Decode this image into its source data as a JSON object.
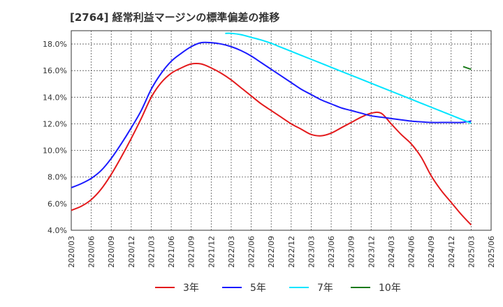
{
  "title": "[2764]  経常利益マージンの標準偏差の推移",
  "chart_data": {
    "type": "line",
    "title": "[2764]  経常利益マージンの標準偏差の推移",
    "xlabel": "",
    "ylabel": "",
    "ylim": [
      4.0,
      19.0
    ],
    "y_ticks": [
      "4.0%",
      "6.0%",
      "8.0%",
      "10.0%",
      "12.0%",
      "14.0%",
      "16.0%",
      "18.0%"
    ],
    "y_tick_values": [
      4,
      6,
      8,
      10,
      12,
      14,
      16,
      18
    ],
    "x_ticks": [
      "2020/03",
      "2020/06",
      "2020/09",
      "2020/12",
      "2021/03",
      "2021/06",
      "2021/09",
      "2021/12",
      "2022/03",
      "2022/06",
      "2022/09",
      "2022/12",
      "2023/03",
      "2023/06",
      "2023/09",
      "2023/12",
      "2024/03",
      "2024/06",
      "2024/09",
      "2024/12",
      "2025/03",
      "2025/06"
    ],
    "grid": true,
    "legend_position": "bottom",
    "series": [
      {
        "name": "3年",
        "color": "#e31a1c",
        "points": [
          [
            0,
            5.5
          ],
          [
            0.5,
            5.8
          ],
          [
            1,
            6.3
          ],
          [
            1.5,
            7.1
          ],
          [
            2,
            8.2
          ],
          [
            2.5,
            9.5
          ],
          [
            3,
            10.9
          ],
          [
            3.5,
            12.4
          ],
          [
            4,
            14.0
          ],
          [
            4.5,
            15.1
          ],
          [
            5,
            15.8
          ],
          [
            5.5,
            16.2
          ],
          [
            6,
            16.5
          ],
          [
            6.5,
            16.5
          ],
          [
            7,
            16.2
          ],
          [
            7.5,
            15.8
          ],
          [
            8,
            15.3
          ],
          [
            8.5,
            14.7
          ],
          [
            9,
            14.1
          ],
          [
            9.5,
            13.5
          ],
          [
            10,
            13.0
          ],
          [
            10.5,
            12.5
          ],
          [
            11,
            12.0
          ],
          [
            11.5,
            11.6
          ],
          [
            12,
            11.2
          ],
          [
            12.5,
            11.1
          ],
          [
            13,
            11.3
          ],
          [
            13.5,
            11.7
          ],
          [
            14,
            12.1
          ],
          [
            14.5,
            12.5
          ],
          [
            15,
            12.8
          ],
          [
            15.5,
            12.8
          ],
          [
            16,
            12.0
          ],
          [
            16.5,
            11.2
          ],
          [
            17,
            10.5
          ],
          [
            17.5,
            9.5
          ],
          [
            18,
            8.1
          ],
          [
            18.5,
            7.0
          ],
          [
            19,
            6.1
          ],
          [
            19.5,
            5.2
          ],
          [
            20,
            4.4
          ]
        ]
      },
      {
        "name": "5年",
        "color": "#1a1aff",
        "points": [
          [
            0,
            7.2
          ],
          [
            0.5,
            7.5
          ],
          [
            1,
            7.9
          ],
          [
            1.5,
            8.5
          ],
          [
            2,
            9.4
          ],
          [
            2.5,
            10.5
          ],
          [
            3,
            11.7
          ],
          [
            3.5,
            13.0
          ],
          [
            4,
            14.6
          ],
          [
            4.5,
            15.8
          ],
          [
            5,
            16.7
          ],
          [
            5.5,
            17.3
          ],
          [
            6,
            17.8
          ],
          [
            6.5,
            18.1
          ],
          [
            7,
            18.1
          ],
          [
            7.5,
            18.0
          ],
          [
            8,
            17.8
          ],
          [
            8.5,
            17.5
          ],
          [
            9,
            17.1
          ],
          [
            9.5,
            16.6
          ],
          [
            10,
            16.1
          ],
          [
            10.5,
            15.6
          ],
          [
            11,
            15.1
          ],
          [
            11.5,
            14.6
          ],
          [
            12,
            14.2
          ],
          [
            12.5,
            13.8
          ],
          [
            13,
            13.5
          ],
          [
            13.5,
            13.2
          ],
          [
            14,
            13.0
          ],
          [
            14.5,
            12.8
          ],
          [
            15,
            12.6
          ],
          [
            15.5,
            12.5
          ],
          [
            16,
            12.4
          ],
          [
            16.5,
            12.3
          ],
          [
            17,
            12.2
          ],
          [
            17.5,
            12.15
          ],
          [
            18,
            12.1
          ],
          [
            18.5,
            12.1
          ],
          [
            19,
            12.1
          ],
          [
            19.5,
            12.1
          ],
          [
            20,
            12.2
          ]
        ]
      },
      {
        "name": "7年",
        "color": "#00e5ff",
        "points": [
          [
            7.7,
            18.8
          ],
          [
            8,
            18.8
          ],
          [
            8.5,
            18.7
          ],
          [
            9,
            18.5
          ],
          [
            9.5,
            18.3
          ],
          [
            10,
            18.05
          ],
          [
            10.5,
            17.75
          ],
          [
            11,
            17.45
          ],
          [
            11.5,
            17.15
          ],
          [
            12,
            16.85
          ],
          [
            12.5,
            16.55
          ],
          [
            13,
            16.25
          ],
          [
            13.5,
            15.95
          ],
          [
            14,
            15.65
          ],
          [
            14.5,
            15.35
          ],
          [
            15,
            15.05
          ],
          [
            15.5,
            14.75
          ],
          [
            16,
            14.45
          ],
          [
            16.5,
            14.15
          ],
          [
            17,
            13.85
          ],
          [
            17.5,
            13.55
          ],
          [
            18,
            13.25
          ],
          [
            18.5,
            12.95
          ],
          [
            19,
            12.65
          ],
          [
            19.5,
            12.35
          ],
          [
            20,
            12.05
          ]
        ]
      },
      {
        "name": "10年",
        "color": "#1a7a1a",
        "points": [
          [
            19.6,
            16.3
          ],
          [
            20,
            16.1
          ]
        ]
      }
    ]
  }
}
